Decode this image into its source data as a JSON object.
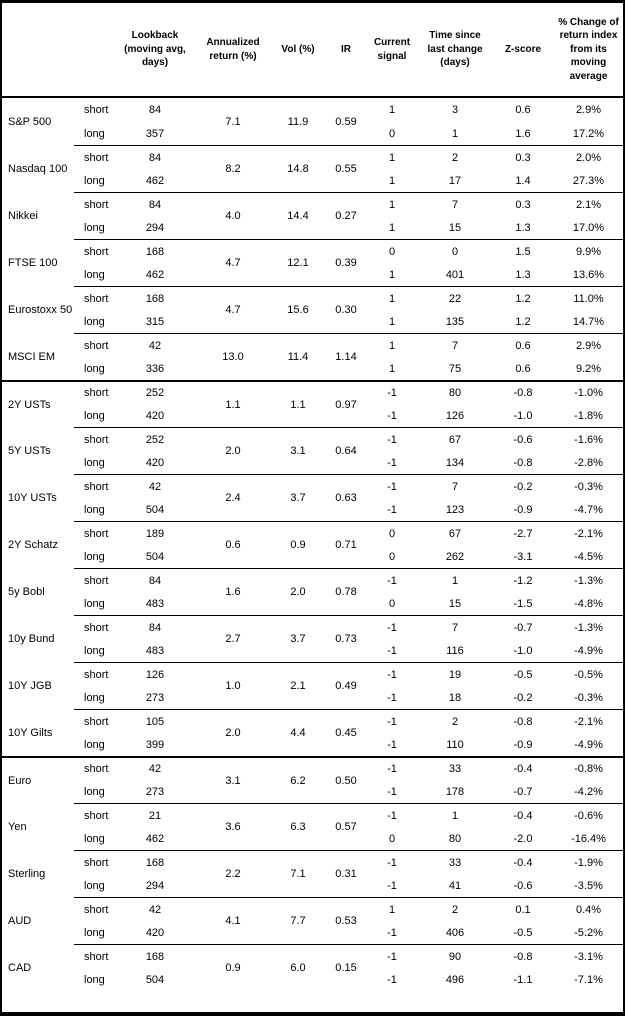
{
  "chart_data": {
    "type": "table",
    "column_headers": [
      "",
      "",
      "Lookback (moving avg, days)",
      "Annualized return (%)",
      "Vol (%)",
      "IR",
      "Current signal",
      "Time since last change (days)",
      "Z-score",
      "% Change of return index from its moving average"
    ],
    "sections": [
      {
        "groups": [
          {
            "asset": "S&P 500",
            "annualized_return": "7.1",
            "vol": "11.9",
            "ir": "0.59",
            "rows": [
              {
                "leg": "short",
                "lookback": "84",
                "signal": "1",
                "time_since": "3",
                "z_score": "0.6",
                "pct_change": "2.9%"
              },
              {
                "leg": "long",
                "lookback": "357",
                "signal": "0",
                "time_since": "1",
                "z_score": "1.6",
                "pct_change": "17.2%"
              }
            ]
          },
          {
            "asset": "Nasdaq 100",
            "annualized_return": "8.2",
            "vol": "14.8",
            "ir": "0.55",
            "rows": [
              {
                "leg": "short",
                "lookback": "84",
                "signal": "1",
                "time_since": "2",
                "z_score": "0.3",
                "pct_change": "2.0%"
              },
              {
                "leg": "long",
                "lookback": "462",
                "signal": "1",
                "time_since": "17",
                "z_score": "1.4",
                "pct_change": "27.3%"
              }
            ]
          },
          {
            "asset": "Nikkei",
            "annualized_return": "4.0",
            "vol": "14.4",
            "ir": "0.27",
            "rows": [
              {
                "leg": "short",
                "lookback": "84",
                "signal": "1",
                "time_since": "7",
                "z_score": "0.3",
                "pct_change": "2.1%"
              },
              {
                "leg": "long",
                "lookback": "294",
                "signal": "1",
                "time_since": "15",
                "z_score": "1.3",
                "pct_change": "17.0%"
              }
            ]
          },
          {
            "asset": "FTSE 100",
            "annualized_return": "4.7",
            "vol": "12.1",
            "ir": "0.39",
            "rows": [
              {
                "leg": "short",
                "lookback": "168",
                "signal": "0",
                "time_since": "0",
                "z_score": "1.5",
                "pct_change": "9.9%"
              },
              {
                "leg": "long",
                "lookback": "462",
                "signal": "1",
                "time_since": "401",
                "z_score": "1.3",
                "pct_change": "13.6%"
              }
            ]
          },
          {
            "asset": "Eurostoxx 50",
            "annualized_return": "4.7",
            "vol": "15.6",
            "ir": "0.30",
            "rows": [
              {
                "leg": "short",
                "lookback": "168",
                "signal": "1",
                "time_since": "22",
                "z_score": "1.2",
                "pct_change": "11.0%"
              },
              {
                "leg": "long",
                "lookback": "315",
                "signal": "1",
                "time_since": "135",
                "z_score": "1.2",
                "pct_change": "14.7%"
              }
            ]
          },
          {
            "asset": "MSCI EM",
            "annualized_return": "13.0",
            "vol": "11.4",
            "ir": "1.14",
            "rows": [
              {
                "leg": "short",
                "lookback": "42",
                "signal": "1",
                "time_since": "7",
                "z_score": "0.6",
                "pct_change": "2.9%"
              },
              {
                "leg": "long",
                "lookback": "336",
                "signal": "1",
                "time_since": "75",
                "z_score": "0.6",
                "pct_change": "9.2%"
              }
            ]
          }
        ]
      },
      {
        "groups": [
          {
            "asset": "2Y USTs",
            "annualized_return": "1.1",
            "vol": "1.1",
            "ir": "0.97",
            "rows": [
              {
                "leg": "short",
                "lookback": "252",
                "signal": "-1",
                "time_since": "80",
                "z_score": "-0.8",
                "pct_change": "-1.0%"
              },
              {
                "leg": "long",
                "lookback": "420",
                "signal": "-1",
                "time_since": "126",
                "z_score": "-1.0",
                "pct_change": "-1.8%"
              }
            ]
          },
          {
            "asset": "5Y USTs",
            "annualized_return": "2.0",
            "vol": "3.1",
            "ir": "0.64",
            "rows": [
              {
                "leg": "short",
                "lookback": "252",
                "signal": "-1",
                "time_since": "67",
                "z_score": "-0.6",
                "pct_change": "-1.6%"
              },
              {
                "leg": "long",
                "lookback": "420",
                "signal": "-1",
                "time_since": "134",
                "z_score": "-0.8",
                "pct_change": "-2.8%"
              }
            ]
          },
          {
            "asset": "10Y USTs",
            "annualized_return": "2.4",
            "vol": "3.7",
            "ir": "0.63",
            "rows": [
              {
                "leg": "short",
                "lookback": "42",
                "signal": "-1",
                "time_since": "7",
                "z_score": "-0.2",
                "pct_change": "-0.3%"
              },
              {
                "leg": "long",
                "lookback": "504",
                "signal": "-1",
                "time_since": "123",
                "z_score": "-0.9",
                "pct_change": "-4.7%"
              }
            ]
          },
          {
            "asset": "2Y Schatz",
            "annualized_return": "0.6",
            "vol": "0.9",
            "ir": "0.71",
            "rows": [
              {
                "leg": "short",
                "lookback": "189",
                "signal": "0",
                "time_since": "67",
                "z_score": "-2.7",
                "pct_change": "-2.1%"
              },
              {
                "leg": "long",
                "lookback": "504",
                "signal": "0",
                "time_since": "262",
                "z_score": "-3.1",
                "pct_change": "-4.5%"
              }
            ]
          },
          {
            "asset": "5y Bobl",
            "annualized_return": "1.6",
            "vol": "2.0",
            "ir": "0.78",
            "rows": [
              {
                "leg": "short",
                "lookback": "84",
                "signal": "-1",
                "time_since": "1",
                "z_score": "-1.2",
                "pct_change": "-1.3%"
              },
              {
                "leg": "long",
                "lookback": "483",
                "signal": "0",
                "time_since": "15",
                "z_score": "-1.5",
                "pct_change": "-4.8%"
              }
            ]
          },
          {
            "asset": "10y Bund",
            "annualized_return": "2.7",
            "vol": "3.7",
            "ir": "0.73",
            "rows": [
              {
                "leg": "short",
                "lookback": "84",
                "signal": "-1",
                "time_since": "7",
                "z_score": "-0.7",
                "pct_change": "-1.3%"
              },
              {
                "leg": "long",
                "lookback": "483",
                "signal": "-1",
                "time_since": "116",
                "z_score": "-1.0",
                "pct_change": "-4.9%"
              }
            ]
          },
          {
            "asset": "10Y JGB",
            "annualized_return": "1.0",
            "vol": "2.1",
            "ir": "0.49",
            "rows": [
              {
                "leg": "short",
                "lookback": "126",
                "signal": "-1",
                "time_since": "19",
                "z_score": "-0.5",
                "pct_change": "-0.5%"
              },
              {
                "leg": "long",
                "lookback": "273",
                "signal": "-1",
                "time_since": "18",
                "z_score": "-0.2",
                "pct_change": "-0.3%"
              }
            ]
          },
          {
            "asset": "10Y Gilts",
            "annualized_return": "2.0",
            "vol": "4.4",
            "ir": "0.45",
            "rows": [
              {
                "leg": "short",
                "lookback": "105",
                "signal": "-1",
                "time_since": "2",
                "z_score": "-0.8",
                "pct_change": "-2.1%"
              },
              {
                "leg": "long",
                "lookback": "399",
                "signal": "-1",
                "time_since": "110",
                "z_score": "-0.9",
                "pct_change": "-4.9%"
              }
            ]
          }
        ]
      },
      {
        "groups": [
          {
            "asset": "Euro",
            "annualized_return": "3.1",
            "vol": "6.2",
            "ir": "0.50",
            "rows": [
              {
                "leg": "short",
                "lookback": "42",
                "signal": "-1",
                "time_since": "33",
                "z_score": "-0.4",
                "pct_change": "-0.8%"
              },
              {
                "leg": "long",
                "lookback": "273",
                "signal": "-1",
                "time_since": "178",
                "z_score": "-0.7",
                "pct_change": "-4.2%"
              }
            ]
          },
          {
            "asset": "Yen",
            "annualized_return": "3.6",
            "vol": "6.3",
            "ir": "0.57",
            "rows": [
              {
                "leg": "short",
                "lookback": "21",
                "signal": "-1",
                "time_since": "1",
                "z_score": "-0.4",
                "pct_change": "-0.6%"
              },
              {
                "leg": "long",
                "lookback": "462",
                "signal": "0",
                "time_since": "80",
                "z_score": "-2.0",
                "pct_change": "-16.4%"
              }
            ]
          },
          {
            "asset": "Sterling",
            "annualized_return": "2.2",
            "vol": "7.1",
            "ir": "0.31",
            "rows": [
              {
                "leg": "short",
                "lookback": "168",
                "signal": "-1",
                "time_since": "33",
                "z_score": "-0.4",
                "pct_change": "-1.9%"
              },
              {
                "leg": "long",
                "lookback": "294",
                "signal": "-1",
                "time_since": "41",
                "z_score": "-0.6",
                "pct_change": "-3.5%"
              }
            ]
          },
          {
            "asset": "AUD",
            "annualized_return": "4.1",
            "vol": "7.7",
            "ir": "0.53",
            "rows": [
              {
                "leg": "short",
                "lookback": "42",
                "signal": "1",
                "time_since": "2",
                "z_score": "0.1",
                "pct_change": "0.4%"
              },
              {
                "leg": "long",
                "lookback": "420",
                "signal": "-1",
                "time_since": "406",
                "z_score": "-0.5",
                "pct_change": "-5.2%"
              }
            ]
          },
          {
            "asset": "CAD",
            "annualized_return": "0.9",
            "vol": "6.0",
            "ir": "0.15",
            "rows": [
              {
                "leg": "short",
                "lookback": "168",
                "signal": "-1",
                "time_since": "90",
                "z_score": "-0.8",
                "pct_change": "-3.1%"
              },
              {
                "leg": "long",
                "lookback": "504",
                "signal": "-1",
                "time_since": "496",
                "z_score": "-1.1",
                "pct_change": "-7.1%"
              }
            ]
          }
        ]
      }
    ]
  }
}
